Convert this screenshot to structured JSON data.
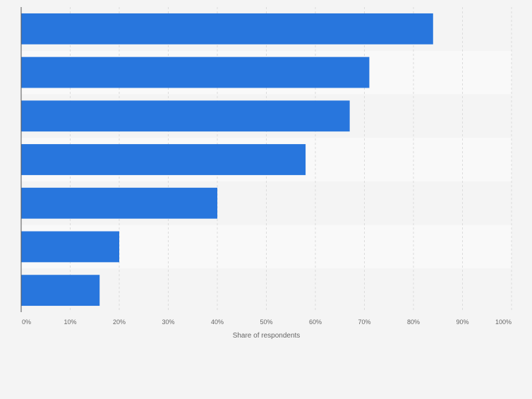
{
  "chart_data": {
    "type": "bar",
    "orientation": "horizontal",
    "title": "",
    "categories": [
      "",
      "",
      "",
      "",
      "",
      "",
      ""
    ],
    "values": [
      84,
      71,
      67,
      58,
      40,
      20,
      16
    ],
    "xlabel": "Share of respondents",
    "ylabel": "",
    "xlim": [
      0,
      100
    ],
    "xticks": [
      "0%",
      "10%",
      "20%",
      "30%",
      "40%",
      "50%",
      "60%",
      "70%",
      "80%",
      "90%",
      "100%"
    ],
    "grid": true,
    "bar_color": "#2876dd",
    "row_band_colors": [
      "#f4f4f4",
      "#f9f9f9"
    ],
    "gridline_color": "#dcdcdc",
    "axis_color": "#555555",
    "tick_label_color": "#666666"
  }
}
